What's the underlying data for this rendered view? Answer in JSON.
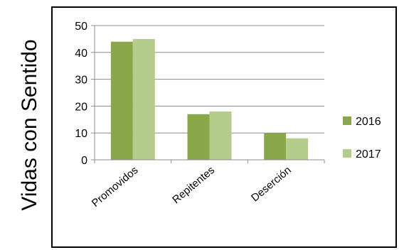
{
  "chart_data": {
    "type": "bar",
    "ylabel": "Vidas con Sentido",
    "categories": [
      "Promovidos",
      "Repitentes",
      "Deserción"
    ],
    "series": [
      {
        "name": "2016",
        "values": [
          44,
          17,
          10
        ],
        "color": "#8aa84a"
      },
      {
        "name": "2017",
        "values": [
          45,
          18,
          8
        ],
        "color": "#b5cd8c"
      }
    ],
    "ylim": [
      0,
      50
    ],
    "yticks": [
      "0",
      "10",
      "20",
      "30",
      "40",
      "50"
    ],
    "grid": true,
    "legend_position": "right"
  }
}
